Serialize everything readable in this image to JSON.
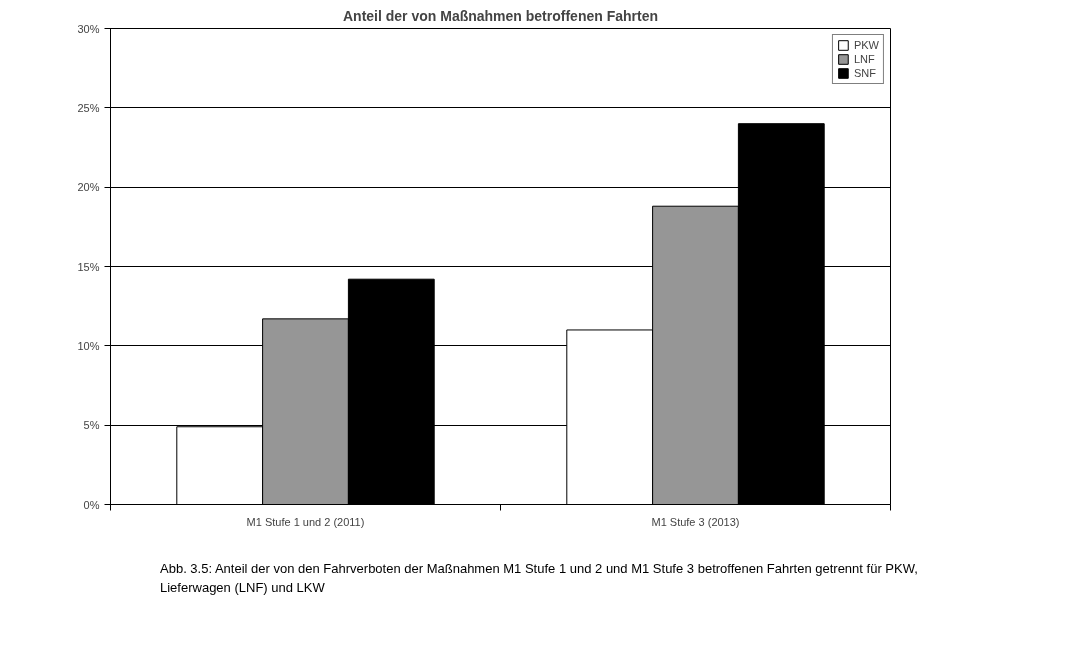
{
  "chart_data": {
    "type": "bar",
    "title": "Anteil der von Maßnahmen betroffenen Fahrten",
    "categories": [
      "M1 Stufe 1 und 2 (2011)",
      "M1 Stufe 3 (2013)"
    ],
    "series": [
      {
        "name": "PKW",
        "color": "#ffffff",
        "values": [
          4.9,
          11.0
        ]
      },
      {
        "name": "LNF",
        "color": "#969696",
        "values": [
          11.7,
          18.8
        ]
      },
      {
        "name": "SNF",
        "color": "#000000",
        "values": [
          14.2,
          24.0
        ]
      }
    ],
    "ylim": [
      0,
      30
    ],
    "yticks": [
      {
        "value": 0,
        "label": "0%"
      },
      {
        "value": 5,
        "label": "5%"
      },
      {
        "value": 10,
        "label": "10%"
      },
      {
        "value": 15,
        "label": "15%"
      },
      {
        "value": 20,
        "label": "20%"
      },
      {
        "value": 25,
        "label": "25%"
      },
      {
        "value": 30,
        "label": "30%"
      }
    ],
    "grid": "y",
    "legend": "top right",
    "annotations": [
      "Abb. 3.5: Anteil der von den Fahrverboten der Maßnahmen M1 Stufe 1 und 2 und M1 Stufe 3 betroffenen Fahrten getrennt für PKW, Lieferwagen (LNF) und LKW"
    ]
  }
}
